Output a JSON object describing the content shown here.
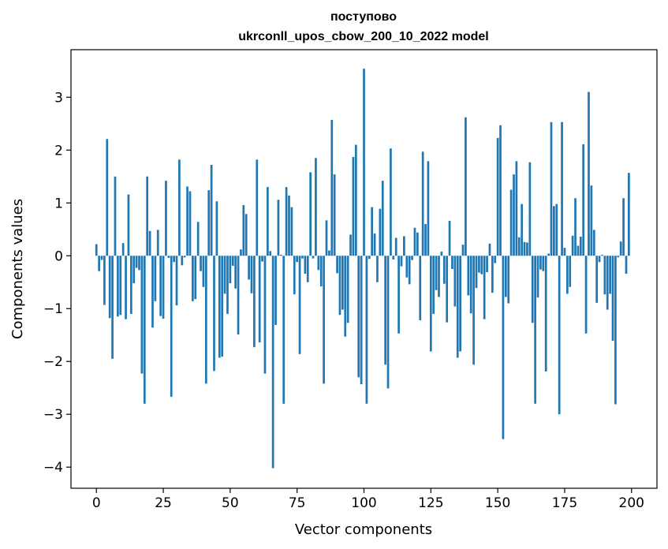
{
  "chart_data": {
    "type": "bar",
    "title": "поступово",
    "subtitle": "ukrconll_upos_cbow_200_10_2022 model",
    "xlabel": "Vector components",
    "ylabel": "Components values",
    "xlim": [
      -9.5,
      209.5
    ],
    "ylim": [
      -4.4,
      3.9
    ],
    "xticks": [
      0,
      25,
      50,
      75,
      100,
      125,
      150,
      175,
      200
    ],
    "yticks": [
      -4,
      -3,
      -2,
      -1,
      0,
      1,
      2,
      3
    ],
    "grid": false,
    "bar_color": "#1f77b4",
    "x": [
      0,
      1,
      2,
      3,
      4,
      5,
      6,
      7,
      8,
      9,
      10,
      11,
      12,
      13,
      14,
      15,
      16,
      17,
      18,
      19,
      20,
      21,
      22,
      23,
      24,
      25,
      26,
      27,
      28,
      29,
      30,
      31,
      32,
      33,
      34,
      35,
      36,
      37,
      38,
      39,
      40,
      41,
      42,
      43,
      44,
      45,
      46,
      47,
      48,
      49,
      50,
      51,
      52,
      53,
      54,
      55,
      56,
      57,
      58,
      59,
      60,
      61,
      62,
      63,
      64,
      65,
      66,
      67,
      68,
      69,
      70,
      71,
      72,
      73,
      74,
      75,
      76,
      77,
      78,
      79,
      80,
      81,
      82,
      83,
      84,
      85,
      86,
      87,
      88,
      89,
      90,
      91,
      92,
      93,
      94,
      95,
      96,
      97,
      98,
      99,
      100,
      101,
      102,
      103,
      104,
      105,
      106,
      107,
      108,
      109,
      110,
      111,
      112,
      113,
      114,
      115,
      116,
      117,
      118,
      119,
      120,
      121,
      122,
      123,
      124,
      125,
      126,
      127,
      128,
      129,
      130,
      131,
      132,
      133,
      134,
      135,
      136,
      137,
      138,
      139,
      140,
      141,
      142,
      143,
      144,
      145,
      146,
      147,
      148,
      149,
      150,
      151,
      152,
      153,
      154,
      155,
      156,
      157,
      158,
      159,
      160,
      161,
      162,
      163,
      164,
      165,
      166,
      167,
      168,
      169,
      170,
      171,
      172,
      173,
      174,
      175,
      176,
      177,
      178,
      179,
      180,
      181,
      182,
      183,
      184,
      185,
      186,
      187,
      188,
      189,
      190,
      191,
      192,
      193,
      194,
      195,
      196,
      197,
      198,
      199
    ],
    "values": [
      0.22,
      -0.29,
      -0.08,
      -0.93,
      2.21,
      -1.18,
      -1.95,
      1.5,
      -1.15,
      -1.12,
      0.24,
      -1.2,
      1.16,
      -1.1,
      -0.52,
      -0.23,
      -0.27,
      -2.23,
      -2.8,
      1.5,
      0.47,
      -1.36,
      -0.86,
      0.49,
      -1.14,
      -1.19,
      1.42,
      -0.04,
      -2.67,
      -0.12,
      -0.94,
      1.82,
      -0.18,
      -0.03,
      1.31,
      1.22,
      -0.86,
      -0.82,
      0.64,
      -0.29,
      -0.59,
      -2.42,
      1.24,
      1.72,
      -2.18,
      1.03,
      -1.93,
      -1.91,
      -0.72,
      -1.1,
      -0.52,
      -0.19,
      -0.62,
      -1.49,
      0.12,
      0.96,
      0.79,
      -0.45,
      -0.71,
      -1.73,
      1.82,
      -1.64,
      -0.11,
      -2.23,
      1.3,
      0.09,
      -4.02,
      -1.31,
      1.06,
      0.02,
      -2.8,
      1.3,
      1.14,
      0.92,
      -0.73,
      -0.12,
      -1.86,
      -0.05,
      -0.34,
      -0.5,
      1.58,
      -0.05,
      1.85,
      -0.27,
      -0.58,
      -2.42,
      0.67,
      0.1,
      2.57,
      1.54,
      -0.33,
      -1.12,
      -1.02,
      -1.53,
      -1.27,
      0.4,
      1.87,
      2.1,
      -2.3,
      -2.43,
      3.54,
      -2.8,
      -0.06,
      0.92,
      0.42,
      -0.5,
      0.89,
      1.42,
      -2.06,
      -2.51,
      2.03,
      -0.07,
      0.34,
      -1.47,
      -0.2,
      0.37,
      -0.41,
      -0.54,
      -0.08,
      0.53,
      0.44,
      -1.22,
      1.97,
      0.6,
      1.79,
      -1.81,
      -1.1,
      -0.65,
      -0.78,
      0.08,
      -0.53,
      -1.26,
      0.66,
      -0.25,
      -0.96,
      -1.93,
      -1.81,
      0.21,
      2.62,
      -0.75,
      -1.09,
      -2.06,
      -0.61,
      -0.32,
      -0.35,
      -1.2,
      -0.31,
      0.23,
      -0.7,
      -0.14,
      2.23,
      2.47,
      -3.47,
      -0.78,
      -0.9,
      1.25,
      1.54,
      1.79,
      0.35,
      0.98,
      0.26,
      0.25,
      1.77,
      -1.27,
      -2.8,
      -0.79,
      -0.26,
      -0.29,
      -2.19,
      0.04,
      2.53,
      0.94,
      0.98,
      -3.0,
      2.53,
      0.15,
      -0.72,
      -0.59,
      0.38,
      1.09,
      0.19,
      0.36,
      2.11,
      -1.47,
      3.1,
      1.33,
      0.49,
      -0.89,
      -0.12,
      0.02,
      -0.73,
      -1.02,
      -0.72,
      -1.61,
      -2.81,
      -0.03,
      0.27,
      1.09,
      -0.34,
      1.57
    ]
  }
}
